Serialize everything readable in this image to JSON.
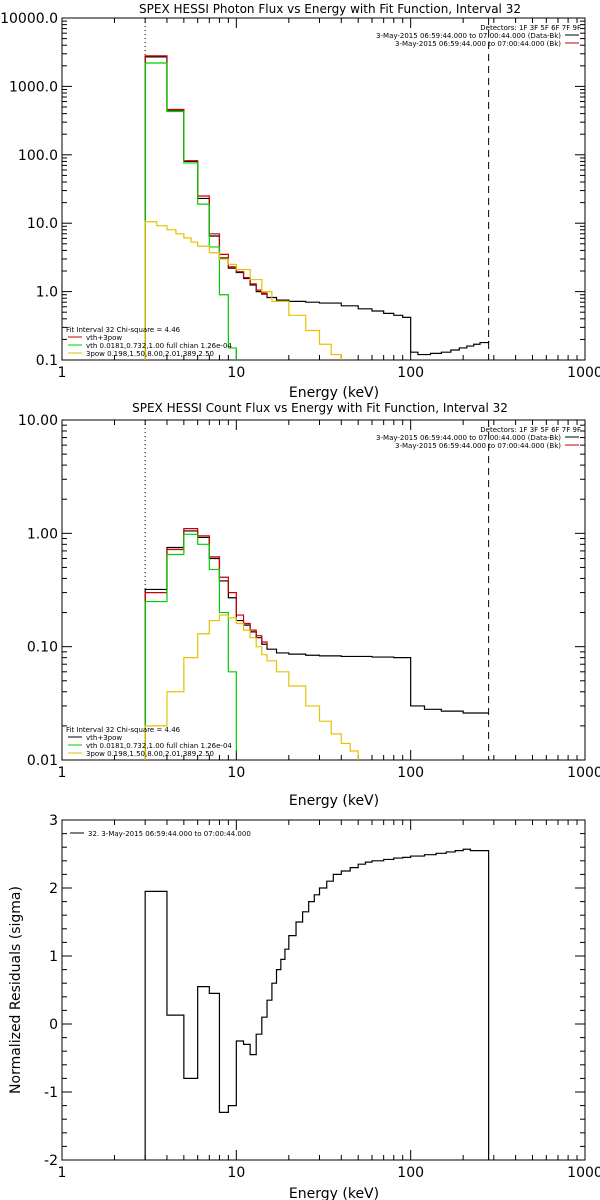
{
  "chart_data": [
    {
      "type": "line",
      "title": "SPEX HESSI Photon Flux vs Energy with Fit Function, Interval 32",
      "xlabel": "Energy (keV)",
      "ylabel": "",
      "xscale": "log",
      "yscale": "log",
      "xlim": [
        1,
        1000
      ],
      "ylim": [
        0.1,
        10000
      ],
      "x_ticks": [
        "1",
        "10",
        "100",
        "1000"
      ],
      "y_ticks": [
        "0.1",
        "1.0",
        "10.0",
        "100.0",
        "1000.0",
        "10000.0"
      ],
      "grid": false,
      "vlines": [
        {
          "x": 3,
          "style": "dotted"
        },
        {
          "x": 280,
          "style": "dashed"
        }
      ],
      "legend_top_right": {
        "header": "Detectors: 1F 3F 5F 6F 7F 9F",
        "rows": [
          {
            "text": "3-May-2015 06:59:44.000 to 07:00:44.000 (Data-Bk)",
            "color": "#000000"
          },
          {
            "text": "3-May-2015 06:59:44.000 to 07:00:44.000 (Bk)",
            "color": "#cc0000"
          }
        ]
      },
      "legend_bottom_left": {
        "header": "Fit Interval 32   Chi-square = 4.46",
        "rows": [
          {
            "text": "vth+3pow",
            "color": "#cc0000"
          },
          {
            "text": "vth 0.0181,0.732,1.00  full chian 1.26e-04",
            "color": "#00cc00"
          },
          {
            "text": "3pow 0.198,1.50,8.00,2.01,389,2.50",
            "color": "#e6c200"
          }
        ]
      },
      "series": [
        {
          "color": "#000000",
          "x": [
            3,
            4,
            5,
            6,
            7,
            8,
            9,
            10,
            11,
            12,
            13,
            14,
            15,
            17,
            20,
            25,
            30,
            40,
            50,
            60,
            70,
            80,
            90,
            100,
            110,
            130,
            150,
            170,
            190,
            210,
            230,
            250,
            280
          ],
          "y": [
            2700,
            450,
            80,
            23,
            6.5,
            3.1,
            2.2,
            1.9,
            1.55,
            1.25,
            1.0,
            0.92,
            0.82,
            0.75,
            0.72,
            0.7,
            0.68,
            0.62,
            0.56,
            0.52,
            0.48,
            0.45,
            0.42,
            0.13,
            0.12,
            0.125,
            0.13,
            0.14,
            0.15,
            0.16,
            0.17,
            0.18,
            0.19
          ]
        },
        {
          "color": "#cc0000",
          "x": [
            3,
            4,
            5,
            6,
            7,
            8,
            9,
            10,
            11,
            12,
            13,
            14,
            15
          ],
          "y": [
            2800,
            460,
            82,
            25,
            7,
            3.5,
            2.3,
            1.95,
            1.6,
            1.3,
            1.05,
            0.95,
            0.84
          ]
        },
        {
          "color": "#00cc00",
          "x": [
            3,
            4,
            5,
            6,
            7,
            8,
            9,
            10
          ],
          "y": [
            2200,
            430,
            76,
            19,
            4.5,
            0.9,
            0.15,
            0.1
          ]
        },
        {
          "color": "#e6c200",
          "x": [
            3,
            3.5,
            4,
            4.5,
            5,
            5.5,
            6,
            7,
            8,
            9,
            10,
            12,
            14,
            16,
            20,
            25,
            30,
            35,
            40
          ],
          "y": [
            10.5,
            9.2,
            8.0,
            7.0,
            6.1,
            5.3,
            4.6,
            3.7,
            3.0,
            2.5,
            2.1,
            1.5,
            1.0,
            0.72,
            0.45,
            0.27,
            0.17,
            0.12,
            0.1
          ]
        }
      ]
    },
    {
      "type": "line",
      "title": "SPEX HESSI Count Flux vs Energy with Fit Function, Interval 32",
      "xlabel": "Energy (keV)",
      "ylabel": "",
      "xscale": "log",
      "yscale": "log",
      "xlim": [
        1,
        1000
      ],
      "ylim": [
        0.01,
        10
      ],
      "x_ticks": [
        "1",
        "10",
        "100",
        "1000"
      ],
      "y_ticks": [
        "0.01",
        "0.10",
        "1.00",
        "10.00"
      ],
      "grid": false,
      "vlines": [
        {
          "x": 3,
          "style": "dotted"
        },
        {
          "x": 280,
          "style": "dashed"
        }
      ],
      "legend_top_right": {
        "header": "Detectors: 1F 3F 5F 6F 7F 9F",
        "rows": [
          {
            "text": "3-May-2015 06:59:44.000 to 07:00:44.000 (Data-Bk)",
            "color": "#000000"
          },
          {
            "text": "3-May-2015 06:59:44.000 to 07:00:44.000 (Bk)",
            "color": "#cc0000"
          }
        ]
      },
      "legend_bottom_left": {
        "header": "Fit Interval 32   Chi-square = 4.46",
        "rows": [
          {
            "text": "vth+3pow",
            "color": "#000000"
          },
          {
            "text": "vth 0.0181,0.732,1.00  full chian 1.26e-04",
            "color": "#00cc00"
          },
          {
            "text": "3pow 0.198,1.50,8.00,2.01,389,2.50",
            "color": "#e6c200"
          }
        ]
      },
      "series": [
        {
          "color": "#000000",
          "x": [
            3,
            4,
            5,
            6,
            7,
            8,
            9,
            10,
            11,
            12,
            13,
            14,
            15,
            17,
            20,
            25,
            30,
            40,
            50,
            60,
            70,
            80,
            90,
            100,
            120,
            150,
            200,
            280
          ],
          "y": [
            0.32,
            0.75,
            1.05,
            0.92,
            0.6,
            0.38,
            0.27,
            0.17,
            0.155,
            0.135,
            0.12,
            0.105,
            0.095,
            0.088,
            0.086,
            0.084,
            0.083,
            0.082,
            0.082,
            0.081,
            0.081,
            0.08,
            0.08,
            0.03,
            0.028,
            0.027,
            0.026,
            0.026
          ]
        },
        {
          "color": "#cc0000",
          "x": [
            3,
            4,
            5,
            6,
            7,
            8,
            9,
            10,
            11,
            12,
            13,
            14,
            15
          ],
          "y": [
            0.3,
            0.72,
            1.1,
            0.95,
            0.62,
            0.41,
            0.3,
            0.19,
            0.16,
            0.14,
            0.125,
            0.11,
            0.1
          ]
        },
        {
          "color": "#00cc00",
          "x": [
            3,
            4,
            5,
            6,
            7,
            8,
            9,
            10
          ],
          "y": [
            0.25,
            0.65,
            0.98,
            0.8,
            0.48,
            0.2,
            0.06,
            0.012
          ]
        },
        {
          "color": "#e6c200",
          "x": [
            3,
            4,
            5,
            6,
            7,
            8,
            9,
            10,
            11,
            12,
            13,
            14,
            15,
            17,
            20,
            25,
            30,
            35,
            40,
            45,
            50
          ],
          "y": [
            0.02,
            0.04,
            0.08,
            0.13,
            0.17,
            0.19,
            0.18,
            0.16,
            0.14,
            0.12,
            0.1,
            0.085,
            0.075,
            0.06,
            0.045,
            0.03,
            0.022,
            0.017,
            0.014,
            0.012,
            0.01
          ]
        }
      ]
    },
    {
      "type": "line",
      "title": "",
      "xlabel": "Energy (keV)",
      "ylabel": "Normalized Residuals (sigma)",
      "xscale": "log",
      "yscale": "linear",
      "xlim": [
        1,
        1000
      ],
      "ylim": [
        -2,
        3
      ],
      "x_ticks": [
        "1",
        "10",
        "100",
        "1000"
      ],
      "y_ticks": [
        "-2",
        "-1",
        "0",
        "1",
        "2",
        "3"
      ],
      "grid": false,
      "legend": {
        "text": "32.  3-May-2015 06:59:44.000 to 07:00:44.000",
        "color": "#000000"
      },
      "series": [
        {
          "color": "#000000",
          "x": [
            3,
            4,
            5,
            6,
            7,
            8,
            9,
            10,
            11,
            12,
            13,
            14,
            15,
            16,
            17,
            18,
            19,
            20,
            22,
            24,
            26,
            28,
            30,
            33,
            36,
            40,
            45,
            50,
            55,
            60,
            70,
            80,
            90,
            100,
            120,
            140,
            160,
            180,
            200,
            220,
            250,
            280
          ],
          "y": [
            1.95,
            0.13,
            -0.8,
            0.55,
            0.45,
            -1.3,
            -1.2,
            -0.25,
            -0.3,
            -0.45,
            -0.15,
            0.1,
            0.35,
            0.6,
            0.8,
            0.95,
            1.1,
            1.3,
            1.5,
            1.65,
            1.8,
            1.9,
            2.0,
            2.1,
            2.2,
            2.25,
            2.3,
            2.35,
            2.38,
            2.4,
            2.42,
            2.44,
            2.45,
            2.47,
            2.49,
            2.51,
            2.53,
            2.55,
            2.57,
            2.55,
            2.55,
            2.55
          ]
        }
      ]
    }
  ]
}
